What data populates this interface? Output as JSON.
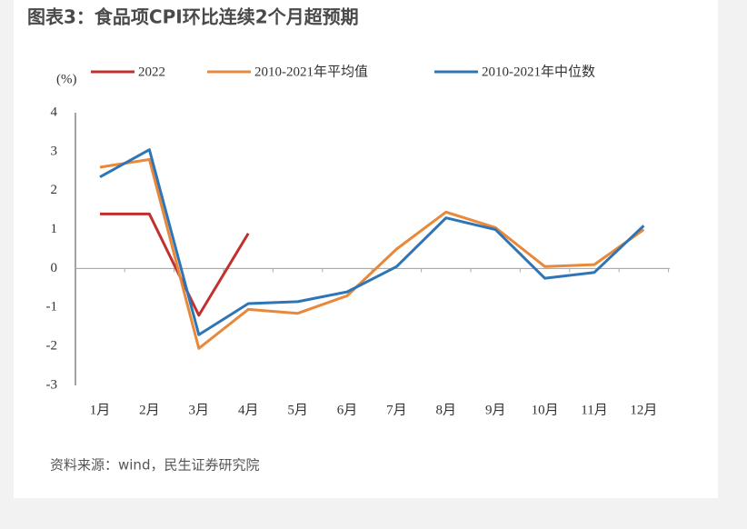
{
  "chart_data": {
    "type": "line",
    "title": "图表3：食品项CPI环比连续2个月超预期",
    "ylabel": "(%)",
    "source": "资料来源：wind，民生证券研究院",
    "categories": [
      "1月",
      "2月",
      "3月",
      "4月",
      "5月",
      "6月",
      "7月",
      "8月",
      "9月",
      "10月",
      "11月",
      "12月"
    ],
    "series": [
      {
        "name": "2022",
        "color": "#c0302e",
        "values": [
          1.4,
          1.4,
          -1.2,
          0.9,
          null,
          null,
          null,
          null,
          null,
          null,
          null,
          null
        ]
      },
      {
        "name": "2010-2021年平均值",
        "color": "#e8883a",
        "values": [
          2.6,
          2.8,
          -2.05,
          -1.05,
          -1.15,
          -0.7,
          0.5,
          1.45,
          1.05,
          0.05,
          0.1,
          1.0
        ]
      },
      {
        "name": "2010-2021年中位数",
        "color": "#2e75b6",
        "values": [
          2.35,
          3.05,
          -1.7,
          -0.9,
          -0.85,
          -0.6,
          0.05,
          1.3,
          1.0,
          -0.25,
          -0.1,
          1.1
        ]
      }
    ],
    "ylim": [
      -3,
      4
    ],
    "yticks": [
      -3,
      -2,
      -1,
      0,
      1,
      2,
      3,
      4
    ],
    "grid": false,
    "legend": "top"
  }
}
